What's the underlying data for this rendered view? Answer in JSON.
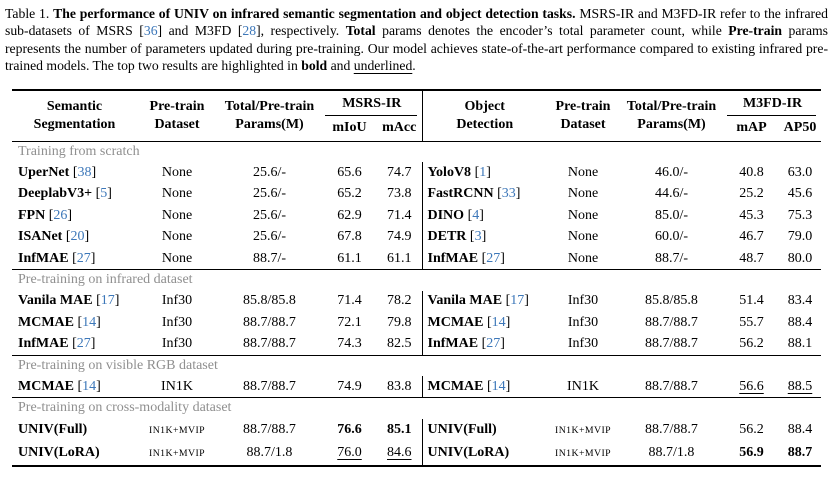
{
  "caption": {
    "segments": [
      {
        "t": "Table 1. ",
        "s": "n"
      },
      {
        "t": "The performance of UNIV on infrared semantic segmentation and object detection tasks.",
        "s": "b"
      },
      {
        "t": " MSRS-IR and M3FD-IR refer to the infrared sub-datasets of MSRS [",
        "s": "n"
      },
      {
        "t": "36",
        "s": "c"
      },
      {
        "t": "] and M3FD [",
        "s": "n"
      },
      {
        "t": "28",
        "s": "c"
      },
      {
        "t": "], respectively. ",
        "s": "n"
      },
      {
        "t": "Total",
        "s": "b"
      },
      {
        "t": " params denotes the encoder’s total parameter count, while ",
        "s": "n"
      },
      {
        "t": "Pre-train",
        "s": "b"
      },
      {
        "t": " params represents the number of parameters updated during pre-training. Our model achieves state-of-the-art performance compared to existing infrared pre-trained models. The top two results are highlighted in ",
        "s": "n"
      },
      {
        "t": "bold",
        "s": "b"
      },
      {
        "t": " and ",
        "s": "n"
      },
      {
        "t": "underlined",
        "s": "u"
      },
      {
        "t": ".",
        "s": "n"
      }
    ]
  },
  "colors": {
    "cite_link": "#3c77b9",
    "section_label": "#8f8f8f"
  },
  "table": {
    "header": {
      "left": {
        "task_l1": "Semantic",
        "task_l2": "Segmentation",
        "dataset_l1": "Pre-train",
        "dataset_l2": "Dataset",
        "params_l1": "Total/Pre-train",
        "params_l2": "Params(M)",
        "group": "MSRS-IR",
        "metric1": "mIoU",
        "metric2": "mAcc"
      },
      "right": {
        "task_l1": "Object",
        "task_l2": "Detection",
        "dataset_l1": "Pre-train",
        "dataset_l2": "Dataset",
        "params_l1": "Total/Pre-train",
        "params_l2": "Params(M)",
        "group": "M3FD-IR",
        "metric1": "mAP",
        "metric2": "AP50"
      }
    },
    "sections": [
      {
        "label": "Training from scratch",
        "rows": [
          {
            "l": {
              "m": "UperNet",
              "c": "38",
              "d": "None",
              "ds": "n",
              "p": "25.6/-",
              "v1": "65.6",
              "s1": "n",
              "v2": "74.7",
              "s2": "n"
            },
            "r": {
              "m": "YoloV8",
              "c": "1",
              "d": "None",
              "ds": "n",
              "p": "46.0/-",
              "v1": "40.8",
              "s1": "n",
              "v2": "63.0",
              "s2": "n"
            }
          },
          {
            "l": {
              "m": "DeeplabV3+",
              "c": "5",
              "d": "None",
              "ds": "n",
              "p": "25.6/-",
              "v1": "65.2",
              "s1": "n",
              "v2": "73.8",
              "s2": "n"
            },
            "r": {
              "m": "FastRCNN",
              "c": "33",
              "d": "None",
              "ds": "n",
              "p": "44.6/-",
              "v1": "25.2",
              "s1": "n",
              "v2": "45.6",
              "s2": "n"
            }
          },
          {
            "l": {
              "m": "FPN",
              "c": "26",
              "d": "None",
              "ds": "n",
              "p": "25.6/-",
              "v1": "62.9",
              "s1": "n",
              "v2": "71.4",
              "s2": "n"
            },
            "r": {
              "m": "DINO",
              "c": "4",
              "d": "None",
              "ds": "n",
              "p": "85.0/-",
              "v1": "45.3",
              "s1": "n",
              "v2": "75.3",
              "s2": "n"
            }
          },
          {
            "l": {
              "m": "ISANet",
              "c": "20",
              "d": "None",
              "ds": "n",
              "p": "25.6/-",
              "v1": "67.8",
              "s1": "n",
              "v2": "74.9",
              "s2": "n"
            },
            "r": {
              "m": "DETR",
              "c": "3",
              "d": "None",
              "ds": "n",
              "p": "60.0/-",
              "v1": "46.7",
              "s1": "n",
              "v2": "79.0",
              "s2": "n"
            }
          },
          {
            "l": {
              "m": "InfMAE",
              "c": "27",
              "d": "None",
              "ds": "n",
              "p": "88.7/-",
              "v1": "61.1",
              "s1": "n",
              "v2": "61.1",
              "s2": "n"
            },
            "r": {
              "m": "InfMAE",
              "c": "27",
              "d": "None",
              "ds": "n",
              "p": "88.7/-",
              "v1": "48.7",
              "s1": "n",
              "v2": "80.0",
              "s2": "n"
            }
          }
        ]
      },
      {
        "label": "Pre-training on infrared dataset",
        "rows": [
          {
            "l": {
              "m": "Vanila MAE",
              "c": "17",
              "d": "Inf30",
              "ds": "n",
              "p": "85.8/85.8",
              "v1": "71.4",
              "s1": "n",
              "v2": "78.2",
              "s2": "n"
            },
            "r": {
              "m": "Vanila MAE",
              "c": "17",
              "d": "Inf30",
              "ds": "n",
              "p": "85.8/85.8",
              "v1": "51.4",
              "s1": "n",
              "v2": "83.4",
              "s2": "n"
            }
          },
          {
            "l": {
              "m": "MCMAE",
              "c": "14",
              "d": "Inf30",
              "ds": "n",
              "p": "88.7/88.7",
              "v1": "72.1",
              "s1": "n",
              "v2": "79.8",
              "s2": "n"
            },
            "r": {
              "m": "MCMAE",
              "c": "14",
              "d": "Inf30",
              "ds": "n",
              "p": "88.7/88.7",
              "v1": "55.7",
              "s1": "n",
              "v2": "88.4",
              "s2": "n"
            }
          },
          {
            "l": {
              "m": "InfMAE",
              "c": "27",
              "d": "Inf30",
              "ds": "n",
              "p": "88.7/88.7",
              "v1": "74.3",
              "s1": "n",
              "v2": "82.5",
              "s2": "n"
            },
            "r": {
              "m": "InfMAE",
              "c": "27",
              "d": "Inf30",
              "ds": "n",
              "p": "88.7/88.7",
              "v1": "56.2",
              "s1": "n",
              "v2": "88.1",
              "s2": "n"
            }
          }
        ]
      },
      {
        "label": "Pre-training on visible RGB dataset",
        "rows": [
          {
            "l": {
              "m": "MCMAE",
              "c": "14",
              "d": "IN1K",
              "ds": "n",
              "p": "88.7/88.7",
              "v1": "74.9",
              "s1": "n",
              "v2": "83.8",
              "s2": "n"
            },
            "r": {
              "m": "MCMAE",
              "c": "14",
              "d": "IN1K",
              "ds": "n",
              "p": "88.7/88.7",
              "v1": "56.6",
              "s1": "u",
              "v2": "88.5",
              "s2": "u"
            }
          }
        ]
      },
      {
        "label": "Pre-training on cross-modality dataset",
        "rows": [
          {
            "l": {
              "m": "UNIV(Full)",
              "c": "",
              "d": "IN1K+MVIP",
              "ds": "sc",
              "p": "88.7/88.7",
              "v1": "76.6",
              "s1": "b",
              "v2": "85.1",
              "s2": "b"
            },
            "r": {
              "m": "UNIV(Full)",
              "c": "",
              "d": "IN1K+MVIP",
              "ds": "sc",
              "p": "88.7/88.7",
              "v1": "56.2",
              "s1": "n",
              "v2": "88.4",
              "s2": "n"
            }
          },
          {
            "l": {
              "m": "UNIV(LoRA)",
              "c": "",
              "d": "IN1K+MVIP",
              "ds": "sc",
              "p": "88.7/1.8",
              "v1": "76.0",
              "s1": "u",
              "v2": "84.6",
              "s2": "u"
            },
            "r": {
              "m": "UNIV(LoRA)",
              "c": "",
              "d": "IN1K+MVIP",
              "ds": "sc",
              "p": "88.7/1.8",
              "v1": "56.9",
              "s1": "b",
              "v2": "88.7",
              "s2": "b"
            }
          }
        ]
      }
    ]
  }
}
